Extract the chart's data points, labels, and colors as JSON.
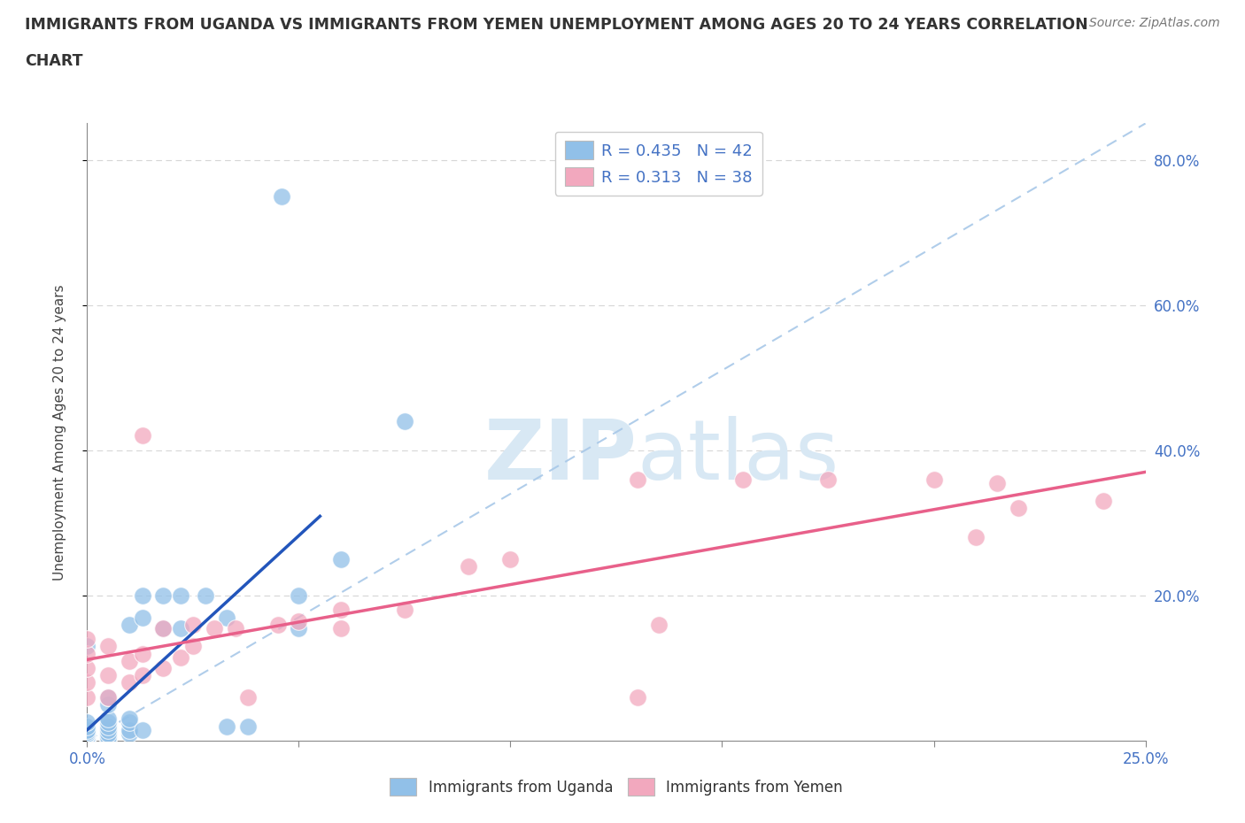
{
  "title_line1": "IMMIGRANTS FROM UGANDA VS IMMIGRANTS FROM YEMEN UNEMPLOYMENT AMONG AGES 20 TO 24 YEARS CORRELATION",
  "title_line2": "CHART",
  "source_text": "Source: ZipAtlas.com",
  "ylabel": "Unemployment Among Ages 20 to 24 years",
  "xlim": [
    0.0,
    0.25
  ],
  "ylim": [
    0.0,
    0.85
  ],
  "uganda_color": "#91c0e8",
  "yemen_color": "#f2a8be",
  "uganda_line_color": "#2255bb",
  "yemen_line_color": "#e8608a",
  "diag_line_color": "#a8c8e8",
  "uganda_R": 0.435,
  "uganda_N": 42,
  "yemen_R": 0.313,
  "yemen_N": 38,
  "legend_label_uganda": "Immigrants from Uganda",
  "legend_label_yemen": "Immigrants from Yemen",
  "watermark_zip": "ZIP",
  "watermark_atlas": "atlas",
  "watermark_color": "#d8e8f4",
  "background_color": "#ffffff",
  "grid_color": "#cccccc",
  "uganda_x": [
    0.0,
    0.0,
    0.0,
    0.0,
    0.0,
    0.0,
    0.0,
    0.0,
    0.0,
    0.0,
    0.0,
    0.0,
    0.005,
    0.005,
    0.005,
    0.005,
    0.005,
    0.005,
    0.005,
    0.005,
    0.005,
    0.01,
    0.01,
    0.01,
    0.01,
    0.01,
    0.013,
    0.013,
    0.013,
    0.018,
    0.018,
    0.022,
    0.022,
    0.028,
    0.033,
    0.033,
    0.038,
    0.046,
    0.05,
    0.05,
    0.06,
    0.075
  ],
  "uganda_y": [
    0.0,
    0.0,
    0.0,
    0.0,
    0.005,
    0.008,
    0.01,
    0.012,
    0.015,
    0.02,
    0.025,
    0.13,
    0.0,
    0.005,
    0.01,
    0.015,
    0.02,
    0.025,
    0.03,
    0.05,
    0.06,
    0.01,
    0.015,
    0.025,
    0.03,
    0.16,
    0.015,
    0.17,
    0.2,
    0.155,
    0.2,
    0.155,
    0.2,
    0.2,
    0.02,
    0.17,
    0.02,
    0.75,
    0.155,
    0.2,
    0.25,
    0.44
  ],
  "yemen_x": [
    0.0,
    0.0,
    0.0,
    0.0,
    0.0,
    0.005,
    0.005,
    0.005,
    0.01,
    0.01,
    0.013,
    0.013,
    0.013,
    0.018,
    0.018,
    0.022,
    0.025,
    0.025,
    0.03,
    0.035,
    0.038,
    0.045,
    0.05,
    0.06,
    0.06,
    0.075,
    0.09,
    0.1,
    0.13,
    0.13,
    0.135,
    0.155,
    0.175,
    0.2,
    0.21,
    0.215,
    0.22,
    0.24
  ],
  "yemen_y": [
    0.06,
    0.08,
    0.1,
    0.12,
    0.14,
    0.06,
    0.09,
    0.13,
    0.08,
    0.11,
    0.09,
    0.12,
    0.42,
    0.1,
    0.155,
    0.115,
    0.13,
    0.16,
    0.155,
    0.155,
    0.06,
    0.16,
    0.165,
    0.155,
    0.18,
    0.18,
    0.24,
    0.25,
    0.36,
    0.06,
    0.16,
    0.36,
    0.36,
    0.36,
    0.28,
    0.355,
    0.32,
    0.33
  ]
}
